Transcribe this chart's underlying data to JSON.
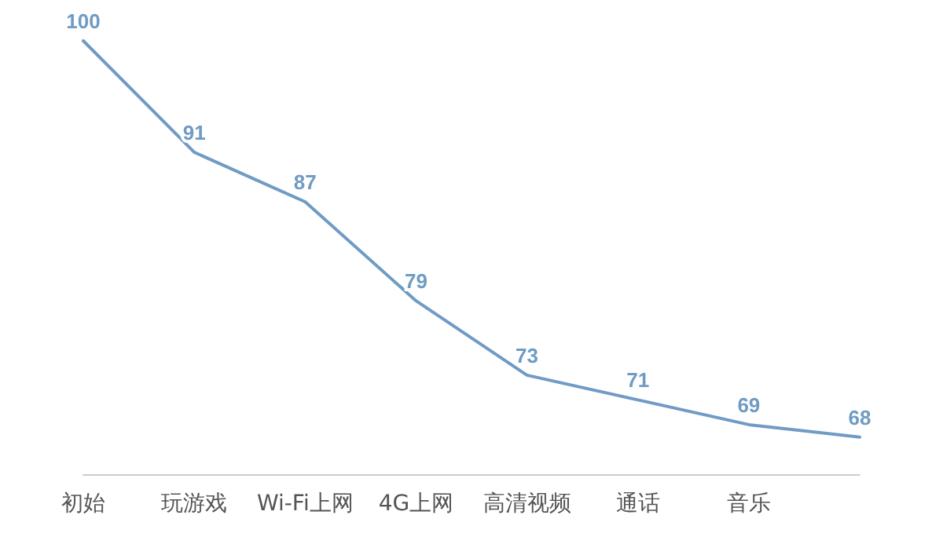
{
  "chart_data": {
    "type": "line",
    "categories": [
      "初始",
      "玩游戏",
      "Wi-Fi上网",
      "4G上网",
      "高清视频",
      "通话",
      "音乐",
      null
    ],
    "series": [
      {
        "color": "#6f9bc4",
        "values": [
          100,
          91,
          87,
          79,
          73,
          71,
          69,
          68
        ]
      }
    ],
    "data_labels": true,
    "grid": false,
    "marker": "none",
    "line_style": "solid",
    "tick_labels": "x"
  }
}
